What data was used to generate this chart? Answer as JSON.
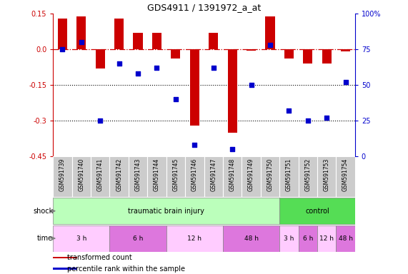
{
  "title": "GDS4911 / 1391972_a_at",
  "samples": [
    "GSM591739",
    "GSM591740",
    "GSM591741",
    "GSM591742",
    "GSM591743",
    "GSM591744",
    "GSM591745",
    "GSM591746",
    "GSM591747",
    "GSM591748",
    "GSM591749",
    "GSM591750",
    "GSM591751",
    "GSM591752",
    "GSM591753",
    "GSM591754"
  ],
  "bar_values": [
    0.13,
    0.14,
    -0.08,
    0.13,
    0.07,
    0.07,
    -0.04,
    -0.32,
    0.07,
    -0.35,
    -0.005,
    0.14,
    -0.04,
    -0.06,
    -0.06,
    -0.01
  ],
  "scatter_values": [
    75,
    80,
    25,
    65,
    58,
    62,
    40,
    8,
    62,
    5,
    50,
    78,
    32,
    25,
    27,
    52
  ],
  "bar_color": "#cc0000",
  "scatter_color": "#0000cc",
  "ylim_left": [
    -0.45,
    0.15
  ],
  "ylim_right": [
    0,
    100
  ],
  "yticks_left": [
    -0.45,
    -0.3,
    -0.15,
    0.0,
    0.15
  ],
  "yticks_right": [
    0,
    25,
    50,
    75,
    100
  ],
  "hline_y": 0.0,
  "dotted_lines": [
    -0.15,
    -0.3
  ],
  "shock_groups": [
    {
      "label": "traumatic brain injury",
      "start": 0,
      "end": 12,
      "color": "#bbffbb"
    },
    {
      "label": "control",
      "start": 12,
      "end": 16,
      "color": "#55dd55"
    }
  ],
  "time_groups": [
    {
      "label": "3 h",
      "start": 0,
      "end": 3,
      "color": "#ffccff"
    },
    {
      "label": "6 h",
      "start": 3,
      "end": 6,
      "color": "#dd77dd"
    },
    {
      "label": "12 h",
      "start": 6,
      "end": 9,
      "color": "#ffccff"
    },
    {
      "label": "48 h",
      "start": 9,
      "end": 12,
      "color": "#dd77dd"
    },
    {
      "label": "3 h",
      "start": 12,
      "end": 13,
      "color": "#ffccff"
    },
    {
      "label": "6 h",
      "start": 13,
      "end": 14,
      "color": "#dd77dd"
    },
    {
      "label": "12 h",
      "start": 14,
      "end": 15,
      "color": "#ffccff"
    },
    {
      "label": "48 h",
      "start": 15,
      "end": 16,
      "color": "#dd77dd"
    }
  ],
  "legend_bar_label": "transformed count",
  "legend_scatter_label": "percentile rank within the sample",
  "shock_label": "shock",
  "time_label": "time",
  "xtick_bg": "#cccccc",
  "background_color": "#ffffff"
}
